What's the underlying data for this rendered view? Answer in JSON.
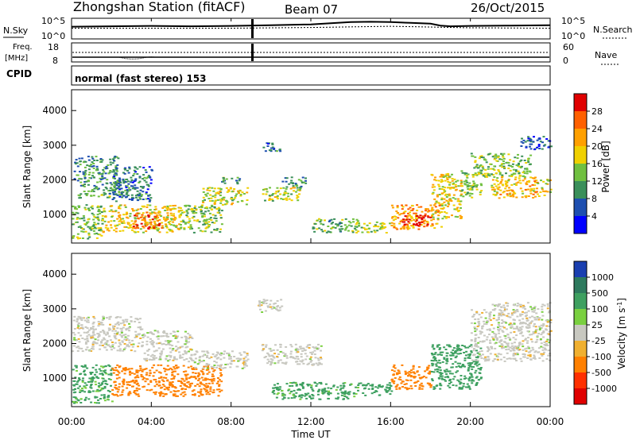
{
  "header": {
    "station": "Zhongshan Station (fitACF)",
    "beam": "Beam 07",
    "date": "26/Oct/2015"
  },
  "top_panels": {
    "nsky_label": "N.Sky",
    "nsearch_label": "N.Search",
    "nsky_ticks": [
      "10^5",
      "10^0"
    ],
    "nsearch_ticks": [
      "10^5",
      "10^0"
    ],
    "freq_label_1": "Freq.",
    "freq_label_2": "[MHz]",
    "freq_ticks": [
      "18",
      "8"
    ],
    "nave_label": "Nave",
    "nave_ticks": [
      "60",
      "0"
    ],
    "cpid_label": "CPID",
    "cpid_text": "normal (fast stereo) 153"
  },
  "axes": {
    "ylabel": "Slant Range [km]",
    "xlabel": "Time UT",
    "y_ticks": [
      "4000",
      "3000",
      "2000",
      "1000"
    ],
    "x_ticks": [
      "00:00",
      "04:00",
      "08:00",
      "12:00",
      "16:00",
      "20:00",
      "00:00"
    ]
  },
  "power_scale": {
    "label": "Power [dB]",
    "ticks": [
      "28",
      "24",
      "20",
      "16",
      "12",
      "8",
      "4"
    ],
    "colors": [
      "#e00000",
      "#ff6000",
      "#ffa000",
      "#f0d000",
      "#70c040",
      "#3a8f5a",
      "#1e4fb0",
      "#0000ff"
    ]
  },
  "velocity_scale": {
    "label": "Velocity [m s",
    "label_sup": "-1",
    "label_close": "]",
    "ticks": [
      "1000",
      "500",
      "100",
      "25",
      "-25",
      "-100",
      "-500",
      "-1000"
    ],
    "colors": [
      "#1a3fb0",
      "#2e7a5e",
      "#3ea060",
      "#7ad040",
      "#c8c8c0",
      "#f0b030",
      "#ff8000",
      "#ff3000",
      "#e00000"
    ]
  },
  "chart_data": [
    {
      "type": "line",
      "title": "N.Sky / N.Search",
      "x_range_hours": [
        0,
        24
      ],
      "series": [
        {
          "name": "N.Sky",
          "x": [
            0,
            2,
            4,
            6,
            8,
            10,
            12,
            13,
            14,
            15,
            16,
            17,
            18,
            18.5,
            19,
            20,
            22,
            24
          ],
          "y": [
            3.0,
            3.1,
            3.2,
            3.1,
            3.2,
            3.4,
            3.6,
            3.9,
            4.2,
            4.3,
            4.2,
            4.0,
            3.8,
            3.3,
            3.1,
            3.2,
            3.3,
            3.4
          ]
        },
        {
          "name": "N.Search",
          "x": [
            0,
            4,
            8,
            12,
            16,
            20,
            24
          ],
          "y": [
            2.6,
            2.6,
            2.6,
            2.8,
            3.1,
            2.7,
            2.6
          ]
        }
      ],
      "ylim": [
        0,
        5
      ]
    },
    {
      "type": "heatmap",
      "title": "Power [dB]",
      "x_range_hours": [
        0,
        24
      ],
      "y_range_km": [
        180,
        4600
      ],
      "regions": [
        {
          "t0": 0.1,
          "t1": 2.3,
          "r0": 2000,
          "r1": 2700,
          "value": 8
        },
        {
          "t0": 0.3,
          "t1": 2.8,
          "r0": 1500,
          "r1": 2000,
          "value": 10
        },
        {
          "t0": 0.0,
          "t1": 1.5,
          "r0": 300,
          "r1": 1300,
          "value": 12
        },
        {
          "t0": 1.5,
          "t1": 5.5,
          "r0": 500,
          "r1": 1300,
          "value": 16
        },
        {
          "t0": 3.0,
          "t1": 4.5,
          "r0": 600,
          "r1": 1100,
          "value": 24
        },
        {
          "t0": 5.5,
          "t1": 7.5,
          "r0": 500,
          "r1": 1300,
          "value": 12
        },
        {
          "t0": 2.0,
          "t1": 4.0,
          "r0": 1400,
          "r1": 2400,
          "value": 6
        },
        {
          "t0": 6.5,
          "t1": 8.8,
          "r0": 1300,
          "r1": 1800,
          "value": 14
        },
        {
          "t0": 7.5,
          "t1": 8.5,
          "r0": 1900,
          "r1": 2100,
          "value": 10
        },
        {
          "t0": 9.5,
          "t1": 11.5,
          "r0": 1400,
          "r1": 1800,
          "value": 14
        },
        {
          "t0": 10.5,
          "t1": 11.7,
          "r0": 1800,
          "r1": 2100,
          "value": 8
        },
        {
          "t0": 9.5,
          "t1": 10.5,
          "r0": 2850,
          "r1": 3100,
          "value": 6
        },
        {
          "t0": 12.0,
          "t1": 14.5,
          "r0": 500,
          "r1": 900,
          "value": 10
        },
        {
          "t0": 14.5,
          "t1": 16.0,
          "r0": 500,
          "r1": 800,
          "value": 14
        },
        {
          "t0": 16.0,
          "t1": 18.5,
          "r0": 600,
          "r1": 1300,
          "value": 20
        },
        {
          "t0": 16.5,
          "t1": 18.0,
          "r0": 700,
          "r1": 1000,
          "value": 28
        },
        {
          "t0": 18.0,
          "t1": 19.5,
          "r0": 900,
          "r1": 2200,
          "value": 16
        },
        {
          "t0": 19.5,
          "t1": 20.5,
          "r0": 1500,
          "r1": 2300,
          "value": 12
        },
        {
          "t0": 20.0,
          "t1": 23.0,
          "r0": 2100,
          "r1": 2800,
          "value": 12
        },
        {
          "t0": 21.0,
          "t1": 24.0,
          "r0": 1500,
          "r1": 2100,
          "value": 18
        },
        {
          "t0": 22.5,
          "t1": 24.0,
          "r0": 2900,
          "r1": 3300,
          "value": 4
        }
      ]
    },
    {
      "type": "heatmap",
      "title": "Velocity",
      "x_range_hours": [
        0,
        24
      ],
      "y_range_km": [
        180,
        4600
      ],
      "regions": [
        {
          "t0": 0.0,
          "t1": 3.5,
          "r0": 1800,
          "r1": 2800,
          "value": 0
        },
        {
          "t0": 0.0,
          "t1": 2.0,
          "r0": 300,
          "r1": 1400,
          "value": 80
        },
        {
          "t0": 2.0,
          "t1": 7.5,
          "r0": 500,
          "r1": 1400,
          "value": -200
        },
        {
          "t0": 3.5,
          "t1": 6.0,
          "r0": 1500,
          "r1": 2400,
          "value": 0
        },
        {
          "t0": 6.0,
          "t1": 8.8,
          "r0": 1300,
          "r1": 1800,
          "value": 0
        },
        {
          "t0": 9.3,
          "t1": 10.5,
          "r0": 2900,
          "r1": 3300,
          "value": 0
        },
        {
          "t0": 9.5,
          "t1": 12.5,
          "r0": 1400,
          "r1": 2000,
          "value": 0
        },
        {
          "t0": 10.0,
          "t1": 14.5,
          "r0": 400,
          "r1": 900,
          "value": 80
        },
        {
          "t0": 14.5,
          "t1": 16.0,
          "r0": 500,
          "r1": 900,
          "value": 120
        },
        {
          "t0": 16.0,
          "t1": 18.0,
          "r0": 700,
          "r1": 1400,
          "value": -150
        },
        {
          "t0": 18.0,
          "t1": 20.5,
          "r0": 700,
          "r1": 2000,
          "value": 150
        },
        {
          "t0": 20.0,
          "t1": 24.0,
          "r0": 1500,
          "r1": 3000,
          "value": 0
        },
        {
          "t0": 21.0,
          "t1": 24.0,
          "r0": 3000,
          "r1": 3200,
          "value": 0
        }
      ]
    }
  ]
}
